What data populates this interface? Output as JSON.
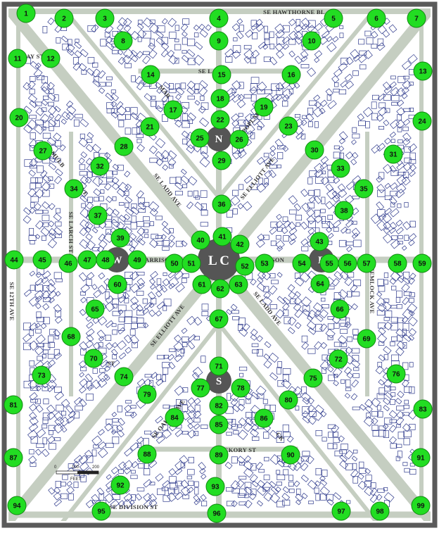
{
  "streets": [
    {
      "id": "hawthorne",
      "name": "SE HAWTHORNE BL"
    },
    {
      "id": "harrison-w",
      "name": "HARRISO"
    },
    {
      "id": "harrison-e",
      "name": "RISON"
    },
    {
      "id": "lincoln",
      "name": "SE L  ST"
    },
    {
      "id": "ladd-nw",
      "name": "SE LADD AVE"
    },
    {
      "id": "elliott-ne",
      "name": "SE ELLIOTT AVE"
    },
    {
      "id": "ladd-se",
      "name": "SE LADD AVE"
    },
    {
      "id": "elliott-sw",
      "name": "SE ELLIOTT AVE"
    },
    {
      "id": "poplar",
      "name": "SE POPLAR"
    },
    {
      "id": "larch",
      "name": "SE LARCH ST"
    },
    {
      "id": "hemlock",
      "name": "HEMLOCK AVE"
    },
    {
      "id": "hickory",
      "name": "HICKORY ST"
    },
    {
      "id": "division",
      "name": "SE DIVISION ST"
    },
    {
      "id": "12th",
      "name": "SE 12TH AVE"
    },
    {
      "id": "20th",
      "name": "SE 20TH AVE"
    },
    {
      "id": "mulb",
      "name": "MULB"
    },
    {
      "id": "ave-w",
      "name": "AVE"
    },
    {
      "id": "ay-st",
      "name": "AY ST"
    },
    {
      "id": "oak",
      "name": "SE OAK"
    },
    {
      "id": "ave-sw",
      "name": "AVE"
    },
    {
      "id": "ck",
      "name": "CK"
    },
    {
      "id": "st-sw",
      "name": "ST"
    },
    {
      "id": "mar",
      "name": "MAR"
    }
  ],
  "circles": [
    {
      "id": "north",
      "letter": "N"
    },
    {
      "id": "center",
      "letter": "L C"
    },
    {
      "id": "west",
      "letter": "W"
    },
    {
      "id": "east",
      "letter": "E"
    },
    {
      "id": "south",
      "letter": "S"
    }
  ],
  "scale": {
    "ticks": [
      "0",
      "100",
      "200"
    ],
    "unit": "FEET"
  },
  "markers": [
    "1",
    "2",
    "3",
    "4",
    "5",
    "6",
    "7",
    "8",
    "9",
    "10",
    "11",
    "12",
    "13",
    "14",
    "15",
    "16",
    "17",
    "18",
    "19",
    "20",
    "21",
    "22",
    "23",
    "24",
    "25",
    "26",
    "27",
    "28",
    "29",
    "30",
    "31",
    "32",
    "33",
    "34",
    "35",
    "36",
    "37",
    "38",
    "39",
    "40",
    "41",
    "42",
    "43",
    "44",
    "45",
    "46",
    "47",
    "48",
    "49",
    "50",
    "51",
    "52",
    "53",
    "54",
    "55",
    "56",
    "57",
    "58",
    "59",
    "60",
    "61",
    "62",
    "63",
    "64",
    "65",
    "66",
    "67",
    "68",
    "69",
    "70",
    "71",
    "72",
    "73",
    "74",
    "75",
    "76",
    "77",
    "78",
    "79",
    "80",
    "81",
    "82",
    "83",
    "84",
    "85",
    "86",
    "87",
    "88",
    "89",
    "90",
    "91",
    "92",
    "93",
    "94",
    "95",
    "96",
    "97",
    "98",
    "99"
  ],
  "colors": {
    "road": "#c5cec1",
    "frame": "#5a5a5a",
    "building": "#2e3a8c",
    "marker": "#22dd22",
    "circle": "#555555"
  }
}
